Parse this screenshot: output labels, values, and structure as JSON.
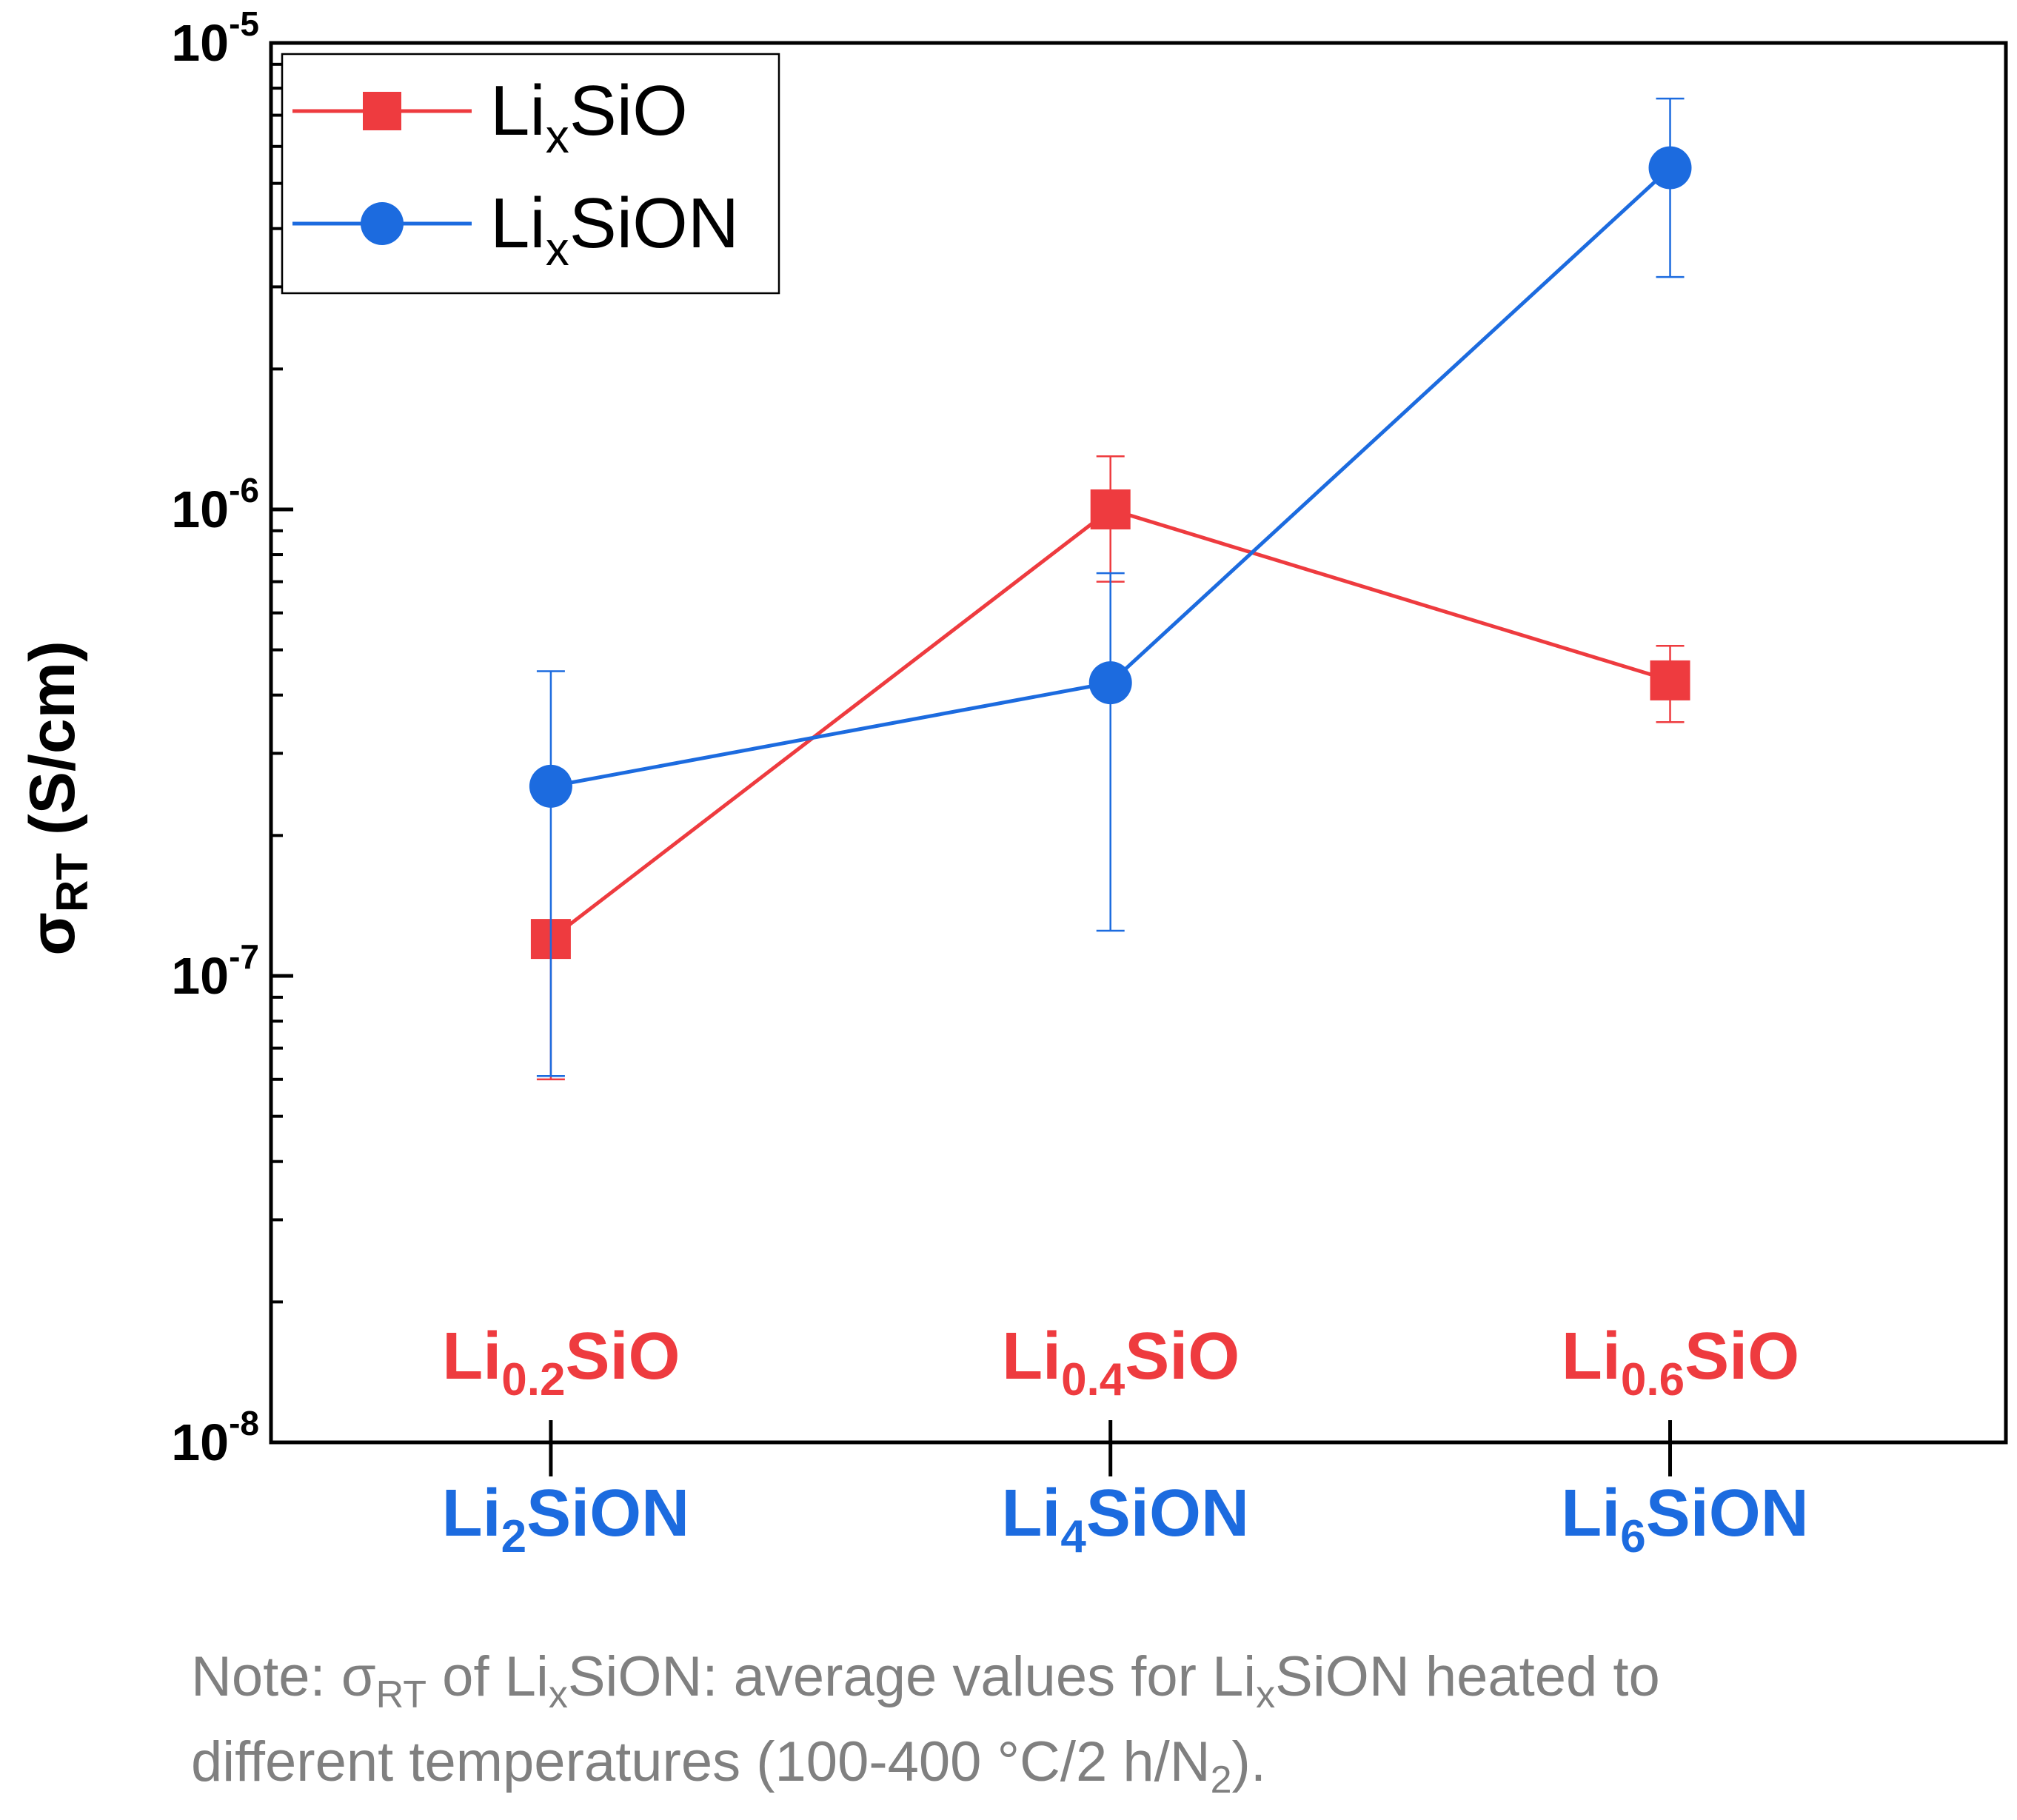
{
  "colors": {
    "LixSiO": "#ee3b3f",
    "LixSiON": "#1c6bdf",
    "axis": "#000000",
    "note": "#808080"
  },
  "chart_data": {
    "type": "line",
    "yscale": "log",
    "ylim": [
      1e-08,
      1e-05
    ],
    "y_ticks": [
      {
        "base": "10",
        "exp": "-5",
        "value": 1e-05
      },
      {
        "base": "10",
        "exp": "-6",
        "value": 1e-06
      },
      {
        "base": "10",
        "exp": "-7",
        "value": 1e-07
      },
      {
        "base": "10",
        "exp": "-8",
        "value": 1e-08
      }
    ],
    "ylabel": {
      "main": "σ",
      "sub": "RT",
      "rest": " (S/cm)"
    },
    "x": [
      1,
      2,
      3
    ],
    "xlim": [
      0.5,
      3.6
    ],
    "categories_top": [
      {
        "pre": "Li",
        "sub": "0.2",
        "post": "SiO"
      },
      {
        "pre": "Li",
        "sub": "0.4",
        "post": "SiO"
      },
      {
        "pre": "Li",
        "sub": "0.6",
        "post": "SiO"
      }
    ],
    "categories_bottom": [
      {
        "pre": "Li",
        "sub": "2",
        "post": "SiON"
      },
      {
        "pre": "Li",
        "sub": "4",
        "post": "SiON"
      },
      {
        "pre": "Li",
        "sub": "6",
        "post": "SiON"
      }
    ],
    "series": [
      {
        "name": "LixSiO",
        "label": {
          "pre": "Li",
          "sub": "x",
          "post": "SiO"
        },
        "marker": "square",
        "color": "#ee3b3f",
        "values": [
          1.2e-07,
          1e-06,
          4.3e-07
        ],
        "error_low": [
          6e-08,
          7e-07,
          3.5e-07
        ],
        "error_high": [
          1.2e-07,
          1.3e-06,
          5.1e-07
        ]
      },
      {
        "name": "LixSiON",
        "label": {
          "pre": "Li",
          "sub": "x",
          "post": "SiON"
        },
        "marker": "circle",
        "color": "#1c6bdf",
        "values": [
          2.55e-07,
          4.25e-07,
          5.4e-06
        ],
        "error_low": [
          6.1e-08,
          1.25e-07,
          3.15e-06
        ],
        "error_high": [
          4.5e-07,
          7.3e-07,
          7.6e-06
        ]
      }
    ],
    "legend_position": "top-left",
    "grid": false
  },
  "note": {
    "line1": {
      "t1": "Note: σ",
      "s1": "RT",
      "t2": " of Li",
      "s2": "x",
      "t3": "SiON: average values for Li",
      "s3": "x",
      "t4": "SiON heated to"
    },
    "line2": {
      "t1": "different temperatures (100-400 °C/2 h/N",
      "s1": "2",
      "t2": ")."
    }
  }
}
